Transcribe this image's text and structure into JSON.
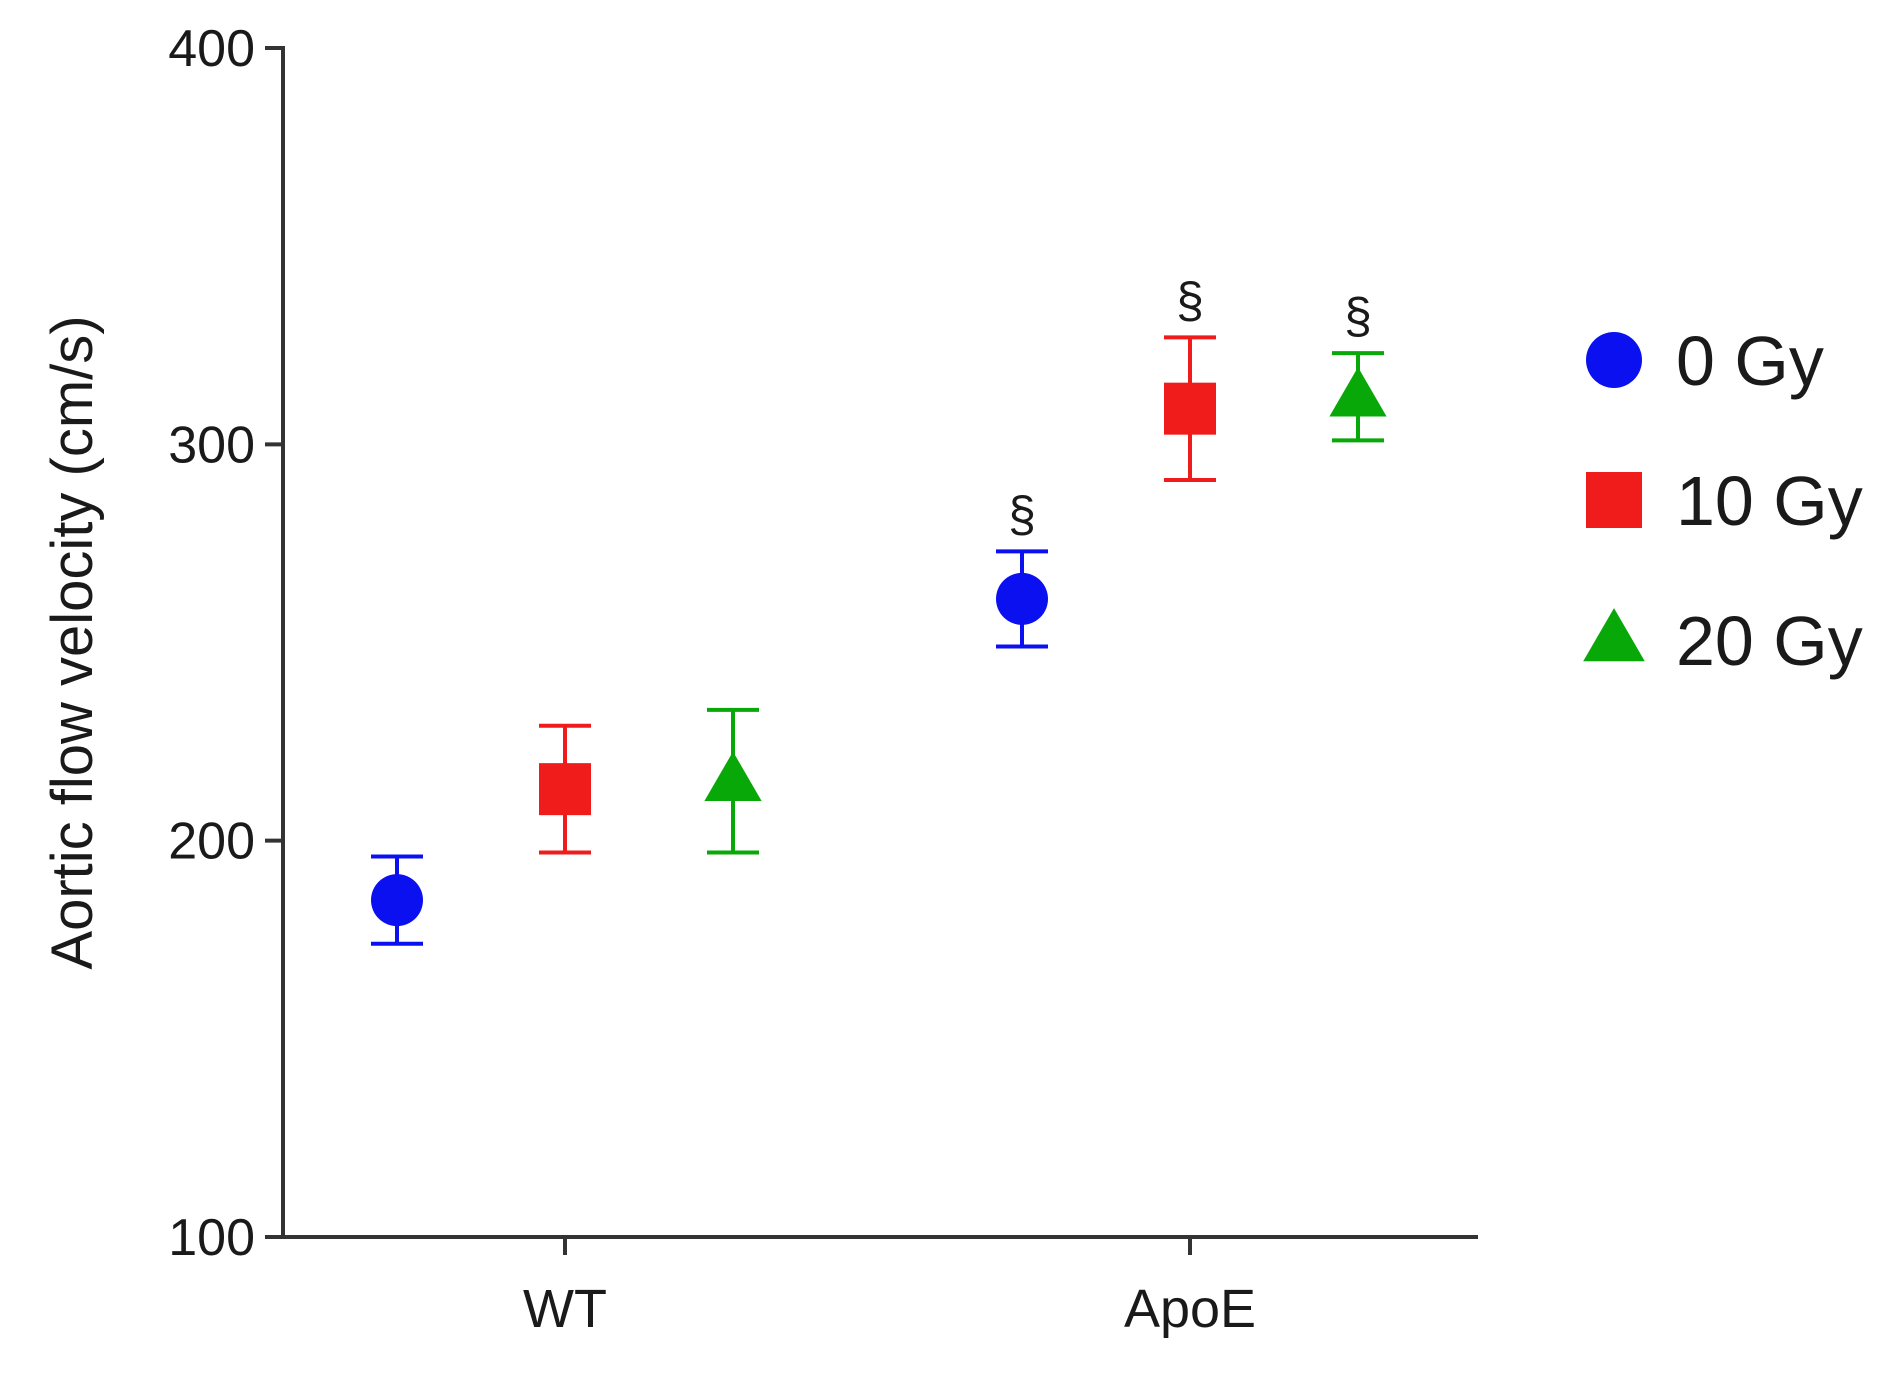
{
  "chart_data": {
    "type": "scatter",
    "title": "",
    "xlabel": "",
    "ylabel": "Aortic flow velocity (cm/s)",
    "categories": [
      "WT",
      "ApoE"
    ],
    "ylim": [
      100,
      400
    ],
    "yticks": [
      "100",
      "200",
      "300",
      "400"
    ],
    "grid": false,
    "legend_position": "right",
    "series": [
      {
        "name": "0 Gy",
        "marker": "circle",
        "color": "#0a10f0",
        "values": [
          185,
          261
        ],
        "error": [
          11,
          12
        ],
        "significance": [
          "",
          "§"
        ]
      },
      {
        "name": "10 Gy",
        "marker": "square",
        "color": "#f01c1c",
        "values": [
          213,
          309
        ],
        "error": [
          16,
          18
        ],
        "significance": [
          "",
          "§"
        ]
      },
      {
        "name": "20 Gy",
        "marker": "triangle",
        "color": "#08a808",
        "values": [
          215,
          312
        ],
        "error": [
          18,
          11
        ],
        "significance": [
          "",
          "§"
        ]
      }
    ]
  }
}
